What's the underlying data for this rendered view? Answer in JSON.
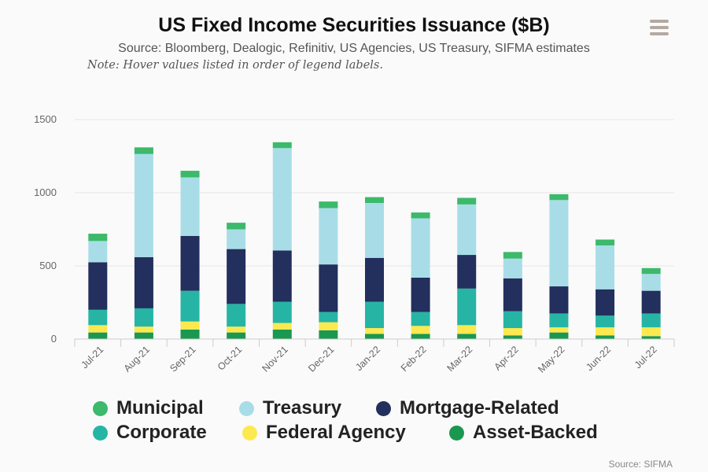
{
  "header": {
    "title": "US Fixed Income Securities Issuance ($B)",
    "subtitle": "Source: Bloomberg, Dealogic, Refinitiv, US Agencies, US Treasury, SIFMA estimates",
    "note": "Note: Hover values listed in order of legend labels."
  },
  "menu": {
    "icon": "hamburger-menu-icon",
    "color": "#b5a8a2"
  },
  "credit": "Source: SIFMA",
  "chart_data": {
    "type": "bar",
    "stacked": true,
    "categories": [
      "Jul-21",
      "Aug-21",
      "Sep-21",
      "Oct-21",
      "Nov-21",
      "Dec-21",
      "Jan-22",
      "Feb-22",
      "Mar-22",
      "Apr-22",
      "May-22",
      "Jun-22",
      "Jul-22"
    ],
    "ylim": [
      0,
      1500
    ],
    "yticks": [
      0,
      500,
      1000,
      1500
    ],
    "grid": true,
    "legend_position": "bottom",
    "xlabel": "",
    "ylabel": "",
    "series": [
      {
        "name": "Asset-Backed",
        "color": "#1a9850",
        "values": [
          45,
          45,
          65,
          45,
          65,
          60,
          35,
          35,
          35,
          25,
          45,
          25,
          20
        ]
      },
      {
        "name": "Federal Agency",
        "color": "#fce94f",
        "values": [
          50,
          40,
          55,
          40,
          45,
          55,
          40,
          55,
          60,
          50,
          35,
          55,
          60
        ]
      },
      {
        "name": "Corporate",
        "color": "#26b5a5",
        "values": [
          105,
          125,
          210,
          155,
          145,
          70,
          180,
          95,
          250,
          115,
          95,
          80,
          95
        ]
      },
      {
        "name": "Mortgage-Related",
        "color": "#232f5c",
        "values": [
          325,
          350,
          375,
          375,
          350,
          325,
          300,
          235,
          230,
          225,
          185,
          180,
          155
        ]
      },
      {
        "name": "Treasury",
        "color": "#a8dde8",
        "values": [
          145,
          705,
          400,
          135,
          700,
          385,
          375,
          405,
          345,
          135,
          590,
          300,
          115
        ]
      },
      {
        "name": "Municipal",
        "color": "#3cb96b",
        "values": [
          50,
          45,
          45,
          45,
          40,
          45,
          40,
          40,
          45,
          45,
          40,
          40,
          40
        ]
      }
    ]
  },
  "legend": {
    "items": [
      {
        "label": "Municipal",
        "color": "#3cb96b"
      },
      {
        "label": "Treasury",
        "color": "#a8dde8"
      },
      {
        "label": "Mortgage-Related",
        "color": "#232f5c"
      },
      {
        "label": "Corporate",
        "color": "#26b5a5"
      },
      {
        "label": "Federal Agency",
        "color": "#fce94f"
      },
      {
        "label": "Asset-Backed",
        "color": "#1a9850"
      }
    ]
  }
}
